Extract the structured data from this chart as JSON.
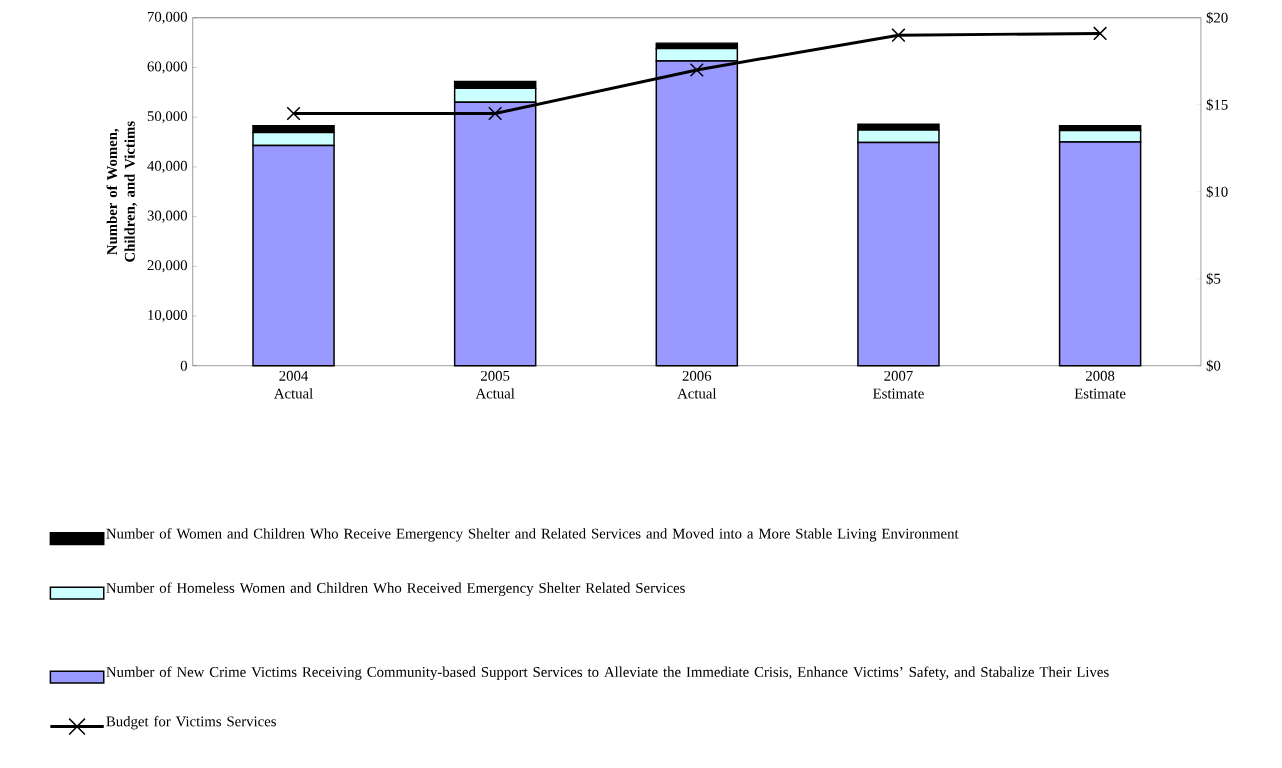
{
  "chart_data": {
    "type": "bar",
    "stacked": true,
    "ylabel": "Number of Women, Children, and Victims",
    "categories": [
      "2004 Actual",
      "2005 Actual",
      "2006 Actual",
      "2007 Estimate",
      "2008 Estimate"
    ],
    "series": [
      {
        "name": "Number of New Crime Victims Receiving Community-based Support Services to Alleviate the Immediate Crisis, Enhance Victims’ Safety, and Stabalize Their Lives",
        "color": "#9999ff",
        "values": [
          44300,
          53000,
          61300,
          44900,
          45000
        ]
      },
      {
        "name": "Number of Homeless Women and Children Who Received Emergency Shelter Related Services",
        "color": "#ccffff",
        "values": [
          2600,
          2800,
          2500,
          2500,
          2300
        ]
      },
      {
        "name": "Number of Women and Children Who Receive Emergency Shelter and Related Services and Moved into a More Stable Living Environment",
        "color": "#000000",
        "values": [
          1400,
          1400,
          1100,
          1200,
          1000
        ]
      },
      {
        "name": "Budget for Victims Services",
        "type": "line",
        "axis": "y2",
        "marker": "cross",
        "color": "#000000",
        "values": [
          14.5,
          14.5,
          17.0,
          19.0,
          19.1
        ]
      }
    ],
    "ylim": [
      0,
      70000
    ],
    "yticks": [
      0,
      {
        "value": 10000,
        "label": "10,000"
      },
      {
        "value": 20000,
        "label": "20,000"
      },
      {
        "value": 30000,
        "label": "30,000"
      },
      {
        "value": 40000,
        "label": "40,000"
      },
      {
        "value": 50000,
        "label": "50,000"
      },
      {
        "value": 60000,
        "label": "60,000"
      },
      {
        "value": 70000,
        "label": "70,000"
      }
    ],
    "y2lim": [
      0,
      20
    ],
    "y2ticks": [
      {
        "value": 0,
        "label": "$0"
      },
      {
        "value": 5,
        "label": "$5"
      },
      {
        "value": 10,
        "label": "$10"
      },
      {
        "value": 15,
        "label": "$15"
      },
      {
        "value": 20,
        "label": "$20"
      }
    ],
    "legend": "bottom"
  }
}
